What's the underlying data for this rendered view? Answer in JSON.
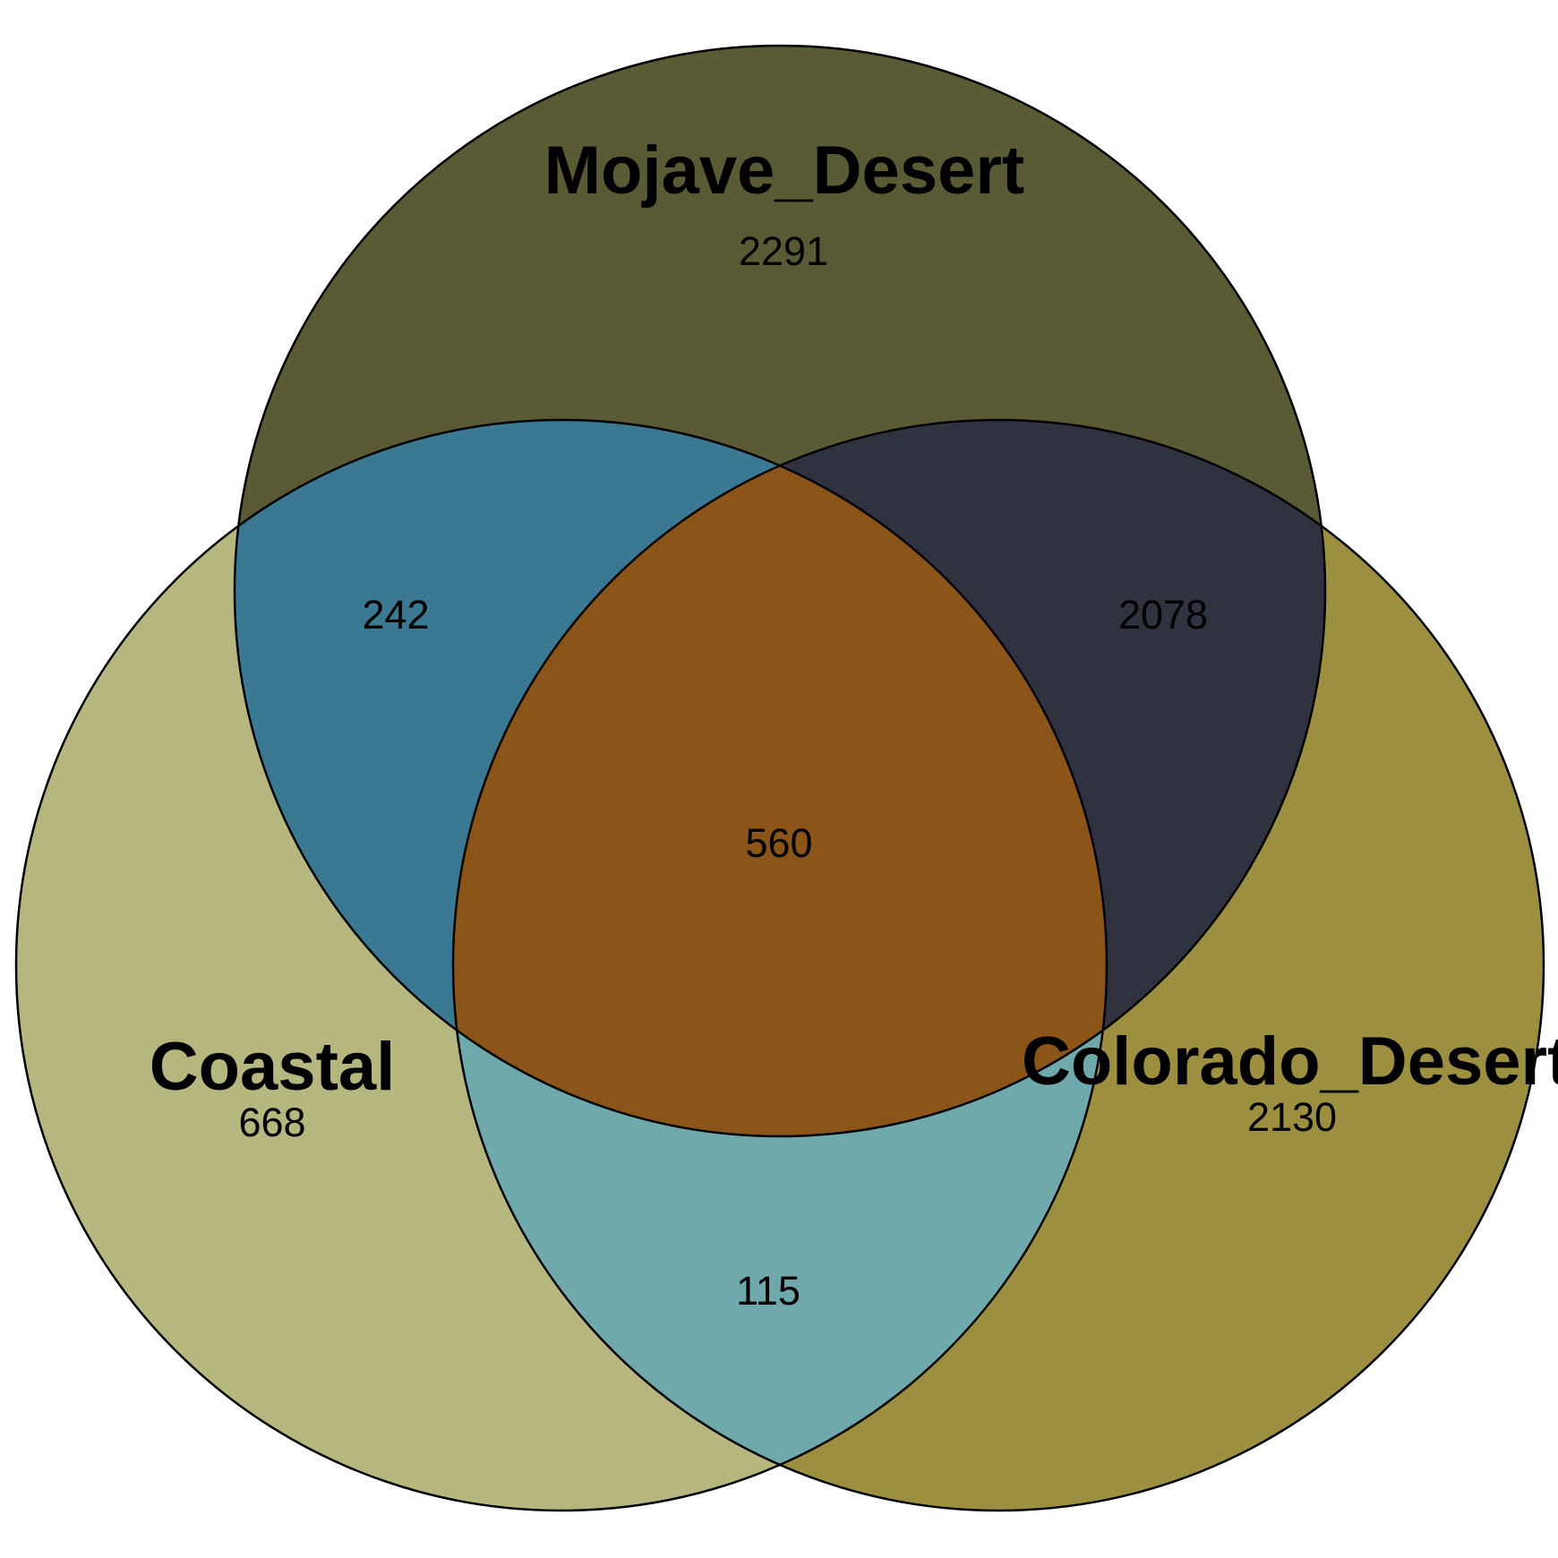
{
  "sets": [
    {
      "id": "mojave",
      "name": "Mojave_Desert"
    },
    {
      "id": "coastal",
      "name": "Coastal"
    },
    {
      "id": "colorado",
      "name": "Colorado_Desert"
    }
  ],
  "counts": {
    "mojave_only": "2291",
    "coastal_only": "668",
    "colorado_only": "2130",
    "mojave_coastal": "242",
    "mojave_colorado": "2078",
    "coastal_colorado": "115",
    "all_three": "560"
  },
  "colors": {
    "mojave_only": "#5a5b35",
    "coastal_only": "#b5b77f",
    "colorado_only": "#9c9040",
    "mojave_coastal": "#3b7892",
    "mojave_colorado": "#30323f",
    "coastal_colorado": "#6fa9ab",
    "all_three": "#8b5418"
  }
}
